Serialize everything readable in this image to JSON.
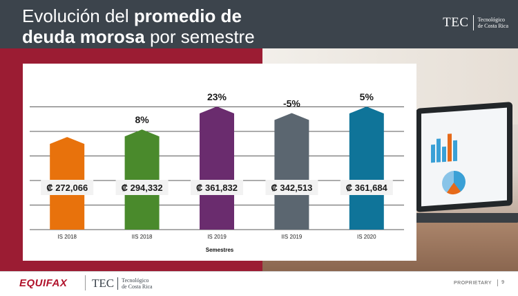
{
  "header": {
    "title_line1_regular": "Evolución del ",
    "title_line1_bold": "promedio de",
    "title_line2_bold": "deuda morosa",
    "title_line2_regular": " por semestre"
  },
  "logo_tec": {
    "word": "TEC",
    "sub_line1": "Tecnológico",
    "sub_line2": "de Costa Rica"
  },
  "footer": {
    "equifax": "EQUIFAX",
    "proprietary": "PROPRIETARY",
    "page": "9"
  },
  "chart_data": {
    "type": "bar",
    "categories": [
      "IS 2018",
      "IIS 2018",
      "IS 2019",
      "IIS 2019",
      "IS 2020"
    ],
    "values": [
      272066,
      294332,
      361832,
      342513,
      361684
    ],
    "value_labels": [
      "₡ 272,066",
      "₡ 294,332",
      "₡ 361,832",
      "₡ 342,513",
      "₡ 361,684"
    ],
    "pct_change_labels": [
      "",
      "8%",
      "23%",
      "-5%",
      "5%"
    ],
    "bar_colors": [
      "#e8720c",
      "#4a8a2c",
      "#6a2c6e",
      "#5b6670",
      "#0f7499"
    ],
    "xlabel": "Semestres",
    "ylabel": "",
    "grid": true,
    "legend": "none"
  }
}
